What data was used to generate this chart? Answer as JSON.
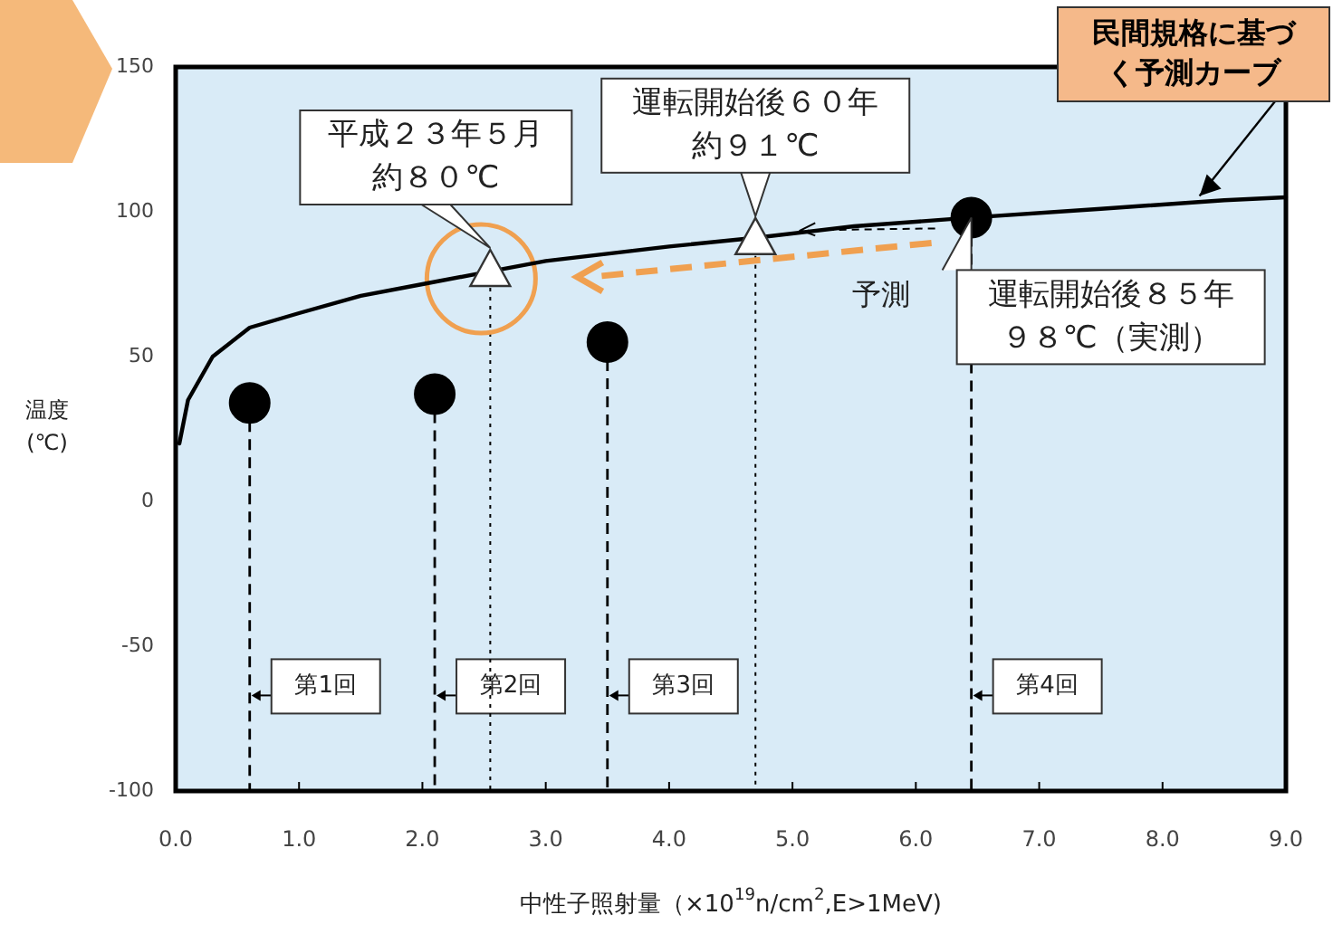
{
  "chart_data": {
    "type": "scatter",
    "xlabel": "中性子照射量（×10$^{19}$n/cm$^{2}$,E>1MeV)",
    "ylabel": "温度\n(℃)",
    "xlim": [
      0,
      9
    ],
    "ylim": [
      -100,
      150
    ],
    "xticks": [
      {
        "value": 0,
        "label": "0.0"
      },
      {
        "value": 1,
        "label": "1.0"
      },
      {
        "value": 2,
        "label": "2.0"
      },
      {
        "value": 3,
        "label": "3.0"
      },
      {
        "value": 4,
        "label": "4.0"
      },
      {
        "value": 5,
        "label": "5.0"
      },
      {
        "value": 6,
        "label": "6.0"
      },
      {
        "value": 7,
        "label": "7.0"
      },
      {
        "value": 8,
        "label": "8.0"
      },
      {
        "value": 9,
        "label": "9.0"
      }
    ],
    "yticks": [
      -100,
      -50,
      0,
      50,
      100,
      150
    ],
    "grid": false,
    "series": [
      {
        "type": "line",
        "color": "#000000",
        "marker": "none",
        "x": [
          0.03,
          0.1,
          0.3,
          0.6,
          1,
          1.5,
          2,
          2.5,
          3,
          4,
          4.7,
          5.5,
          6.45,
          7.5,
          8.5,
          9
        ],
        "values": [
          20,
          35,
          50,
          60,
          65,
          71,
          75,
          79,
          83,
          88,
          91,
          95,
          98,
          101,
          104,
          105
        ]
      },
      {
        "color": "#000000",
        "marker": "circle",
        "x": [
          0.6,
          2.1,
          3.5,
          6.45
        ],
        "values": [
          34,
          37,
          55,
          98
        ]
      },
      {
        "color": "#ffffff",
        "marker": "triangle",
        "x": [
          2.55,
          4.7
        ],
        "values": [
          80,
          91
        ]
      }
    ],
    "ref_lines": [
      {
        "axis": "x",
        "value": 0.6,
        "label": "第1回",
        "line_style": "dashed"
      },
      {
        "axis": "x",
        "value": 2.1,
        "label": "第2回",
        "line_style": "dashed"
      },
      {
        "axis": "x",
        "value": 2.55,
        "line_style": "dotted"
      },
      {
        "axis": "x",
        "value": 3.5,
        "label": "第3回",
        "line_style": "dashed"
      },
      {
        "axis": "x",
        "value": 4.7,
        "line_style": "dotted"
      },
      {
        "axis": "x",
        "value": 6.45,
        "label": "第4回",
        "line_style": "dashed"
      }
    ],
    "annotations": [
      {
        "text": "平成２３年５月約８０℃",
        "x": 2.55,
        "y": 80
      },
      {
        "text": "運転開始後６０年約９１℃",
        "x": 4.7,
        "y": 91
      },
      {
        "text": "運転開始後８５年９８℃（実測）",
        "x": 6.45,
        "y": 98
      },
      "予測",
      {
        "text": "民間規格に基づく予測カーブ",
        "x": 8.3,
        "y": 103
      }
    ]
  }
}
